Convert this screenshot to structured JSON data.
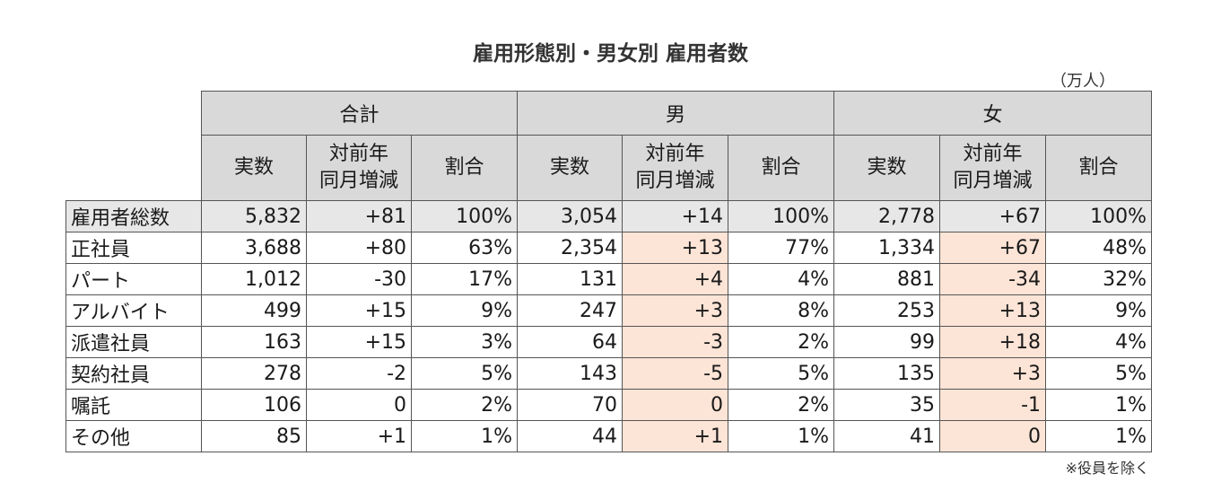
{
  "title": "雇用形態別・男女別 雇用者数",
  "unit": "（万人）",
  "note": "※役員を除く",
  "groups": [
    "合計",
    "男",
    "女"
  ],
  "sub": {
    "actual": "実数",
    "yoy_line1": "対前年",
    "yoy_line2": "同月増減",
    "share": "割合"
  },
  "rows": [
    {
      "label": "雇用者総数",
      "c": [
        "5,832",
        "+81",
        "100%",
        "3,054",
        "+14",
        "100%",
        "2,778",
        "+67",
        "100%"
      ]
    },
    {
      "label": "正社員",
      "c": [
        "3,688",
        "+80",
        "63%",
        "2,354",
        "+13",
        "77%",
        "1,334",
        "+67",
        "48%"
      ]
    },
    {
      "label": "パート",
      "c": [
        "1,012",
        "-30",
        "17%",
        "131",
        "+4",
        "4%",
        "881",
        "-34",
        "32%"
      ]
    },
    {
      "label": "アルバイト",
      "c": [
        "499",
        "+15",
        "9%",
        "247",
        "+3",
        "8%",
        "253",
        "+13",
        "9%"
      ]
    },
    {
      "label": "派遣社員",
      "c": [
        "163",
        "+15",
        "3%",
        "64",
        "-3",
        "2%",
        "99",
        "+18",
        "4%"
      ]
    },
    {
      "label": "契約社員",
      "c": [
        "278",
        "-2",
        "5%",
        "143",
        "-5",
        "5%",
        "135",
        "+3",
        "5%"
      ]
    },
    {
      "label": "嘱託",
      "c": [
        "106",
        "0",
        "2%",
        "70",
        "0",
        "2%",
        "35",
        "-1",
        "1%"
      ]
    },
    {
      "label": "その他",
      "c": [
        "85",
        "+1",
        "1%",
        "44",
        "+1",
        "1%",
        "41",
        "0",
        "1%"
      ]
    }
  ],
  "colors": {
    "header_bg": "#d9d9d9",
    "total_row_bg": "#e7e7e7",
    "highlight_bg": "#fce4d6"
  }
}
